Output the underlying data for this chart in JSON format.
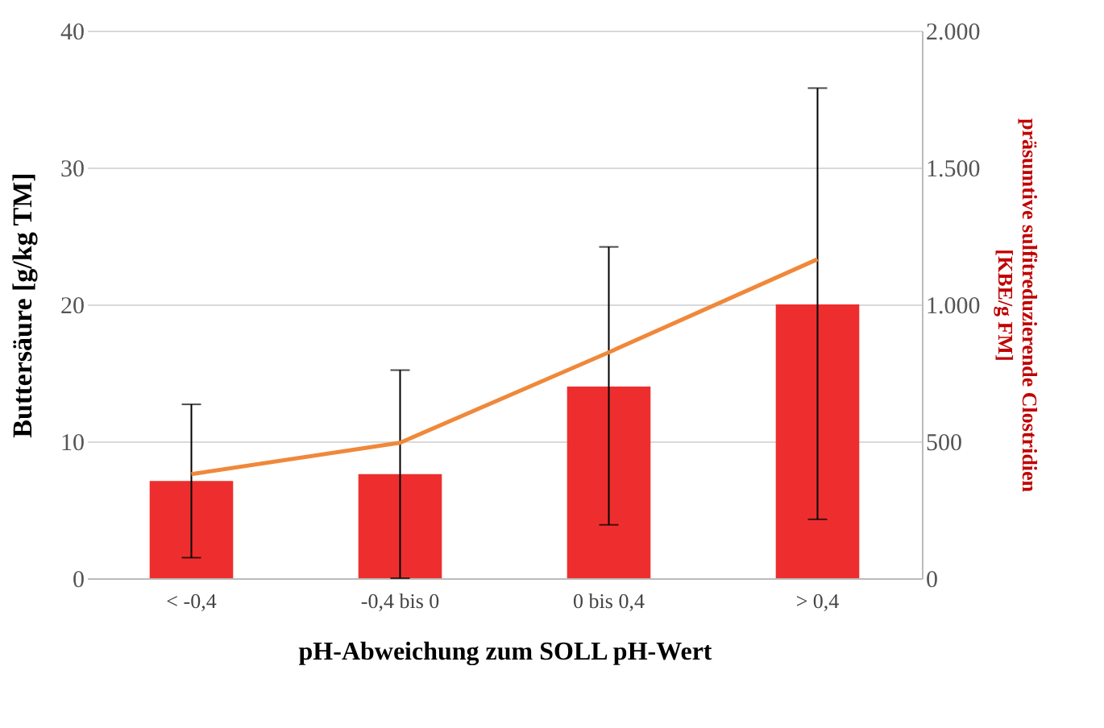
{
  "chart_data": {
    "type": "bar",
    "xlabel": "pH-Abweichung zum SOLL pH-Wert",
    "ylabel": "Buttersäure [g/kg TM]",
    "y2label": "präsumtive sulfitreduzierende Clostridien\n[KBE/g FM]",
    "categories": [
      "< -0,4",
      "-0,4 bis 0",
      "0 bis 0,4",
      "> 0,4"
    ],
    "series": [
      {
        "color": "#ee2e2e",
        "values": [
          7.1,
          7.6,
          14.0,
          20.0
        ],
        "errors": [
          [
            1.5,
            12.7
          ],
          [
            0,
            15.2
          ],
          [
            3.9,
            24.2
          ],
          [
            4.3,
            35.8
          ]
        ]
      },
      {
        "type": "line",
        "axis": "y2",
        "color": "#f0883a",
        "values": [
          380,
          495,
          825,
          1165
        ]
      }
    ],
    "ylim": [
      0,
      40
    ],
    "yticks": [
      0,
      10,
      20,
      30,
      40
    ],
    "y2lim": [
      0,
      2000
    ],
    "y2ticks": [
      0,
      500,
      {
        "value": 1000,
        "label": "1.000"
      },
      {
        "value": 1500,
        "label": "1.500"
      },
      {
        "value": 2000,
        "label": "2.000"
      }
    ],
    "grid": "y",
    "marker": "none",
    "line_style": "solid"
  }
}
